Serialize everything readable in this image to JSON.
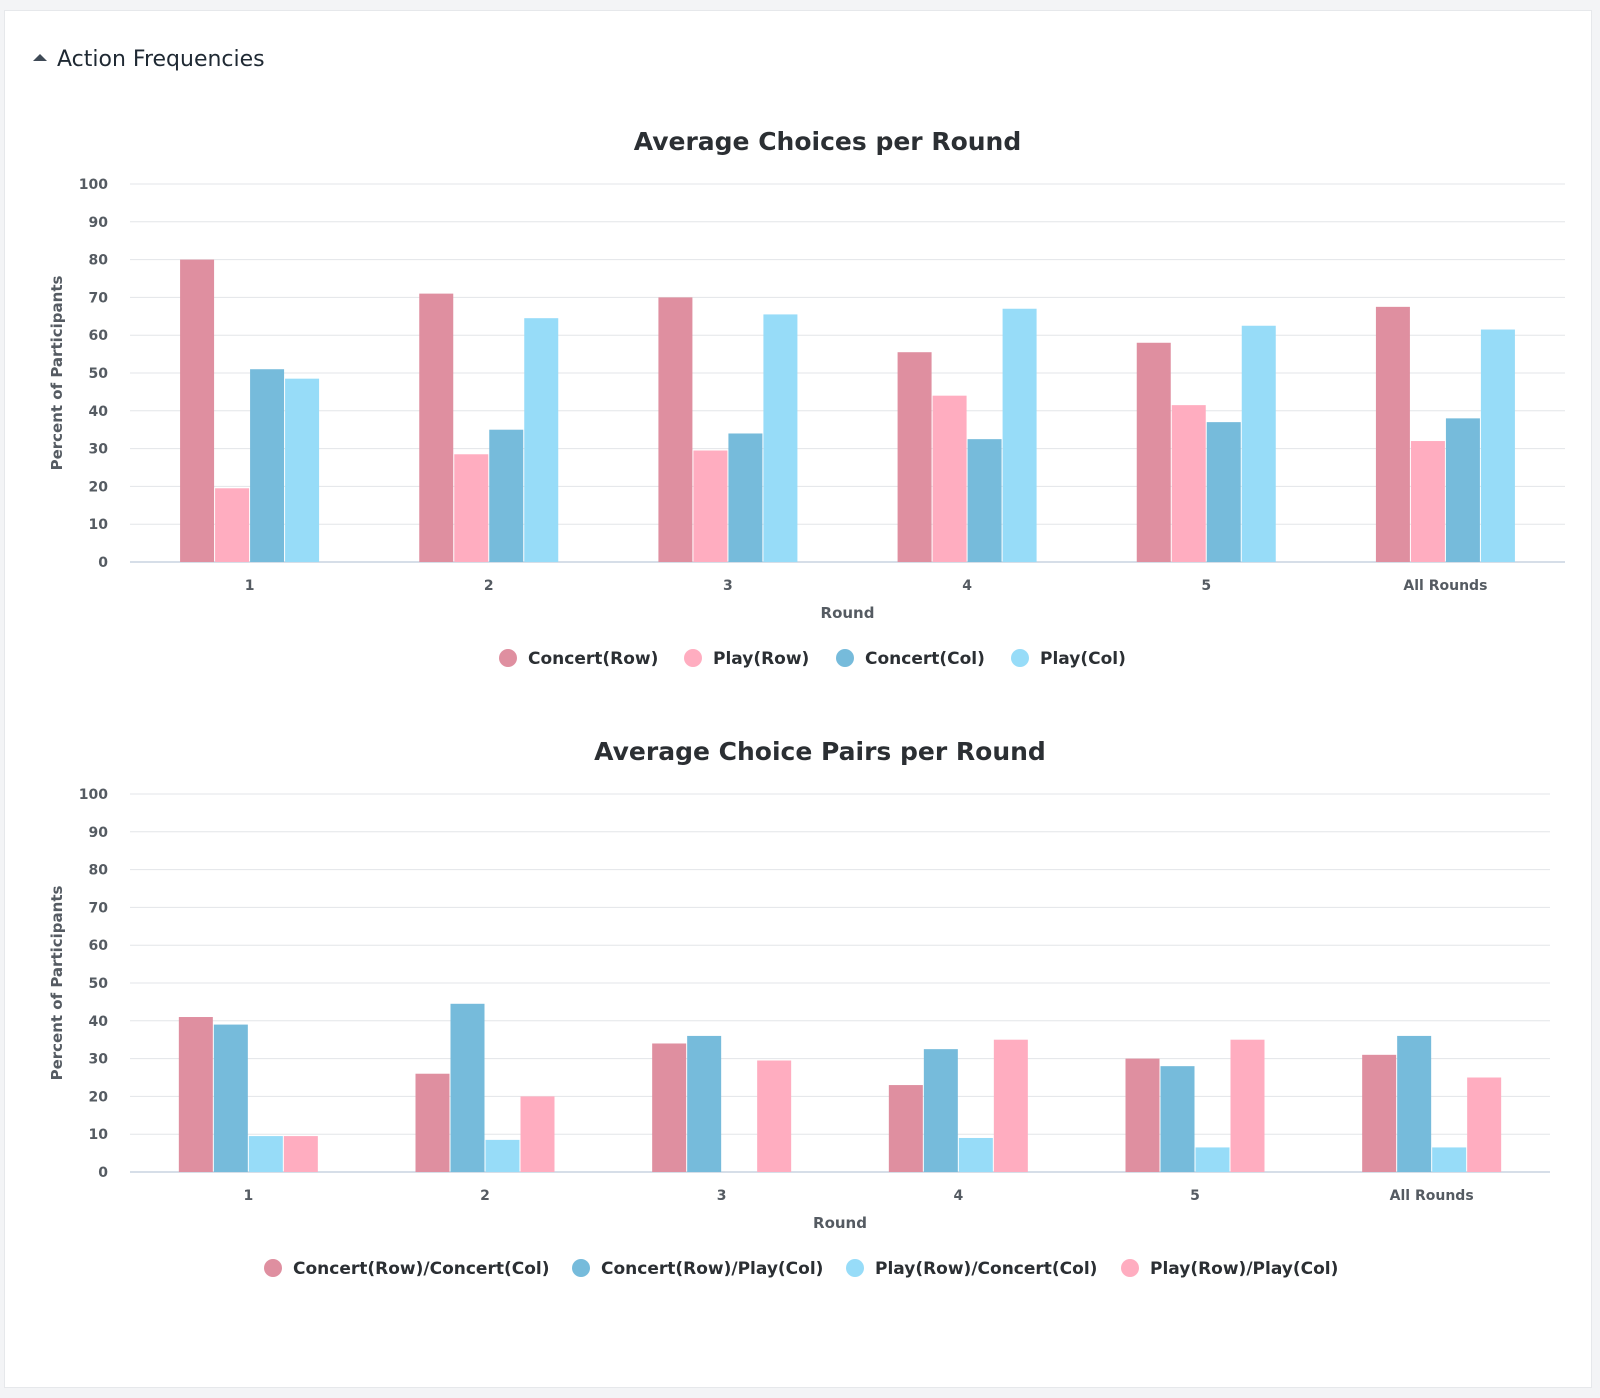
{
  "panel": {
    "title": "Action Frequencies",
    "caret_icon": "caret-up-icon"
  },
  "chart_data": [
    {
      "type": "bar",
      "title": "Average Choices per Round",
      "xlabel": "Round",
      "ylabel": "Percent of Participants",
      "ylim": [
        0,
        100
      ],
      "yticks": [
        0,
        10,
        20,
        30,
        40,
        50,
        60,
        70,
        80,
        90,
        100
      ],
      "grid": true,
      "legend_position": "bottom",
      "categories": [
        "1",
        "2",
        "3",
        "4",
        "5",
        "All Rounds"
      ],
      "series": [
        {
          "name": "Concert(Row)",
          "color": "#df8fa0",
          "values": [
            80,
            71,
            70,
            55.5,
            58,
            67.5
          ]
        },
        {
          "name": "Play(Row)",
          "color": "#ffadc0",
          "values": [
            19.5,
            28.5,
            29.5,
            44,
            41.5,
            32
          ]
        },
        {
          "name": "Concert(Col)",
          "color": "#76bbdb",
          "values": [
            51,
            35,
            34,
            32.5,
            37,
            38
          ]
        },
        {
          "name": "Play(Col)",
          "color": "#97dcf8",
          "values": [
            48.5,
            64.5,
            65.5,
            67,
            62.5,
            61.5
          ]
        }
      ]
    },
    {
      "type": "bar",
      "title": "Average Choice Pairs per Round",
      "xlabel": "Round",
      "ylabel": "Percent of Participants",
      "ylim": [
        0,
        100
      ],
      "yticks": [
        0,
        10,
        20,
        30,
        40,
        50,
        60,
        70,
        80,
        90,
        100
      ],
      "grid": true,
      "legend_position": "bottom",
      "categories": [
        "1",
        "2",
        "3",
        "4",
        "5",
        "All Rounds"
      ],
      "series": [
        {
          "name": "Concert(Row)/Concert(Col)",
          "color": "#df8fa0",
          "values": [
            41,
            26,
            34,
            23,
            30,
            31
          ]
        },
        {
          "name": "Concert(Row)/Play(Col)",
          "color": "#76bbdb",
          "values": [
            39,
            44.5,
            36,
            32.5,
            28,
            36
          ]
        },
        {
          "name": "Play(Row)/Concert(Col)",
          "color": "#97dcf8",
          "values": [
            9.5,
            8.5,
            0,
            9,
            6.5,
            6.5
          ]
        },
        {
          "name": "Play(Row)/Play(Col)",
          "color": "#ffadc0",
          "values": [
            9.5,
            20,
            29.5,
            35,
            35,
            25
          ]
        }
      ]
    }
  ]
}
